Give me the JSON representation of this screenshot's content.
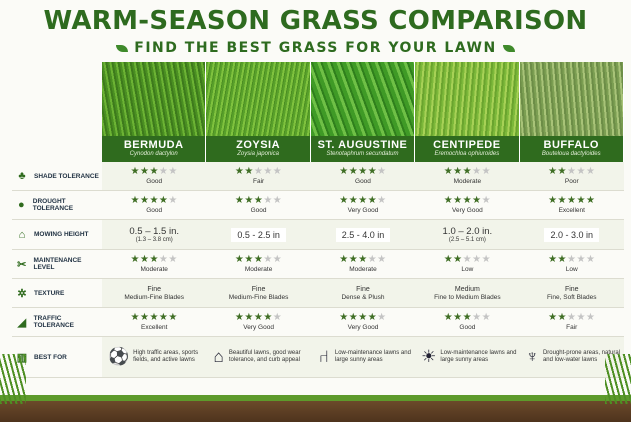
{
  "title": "WARM-SEASON GRASS COMPARISON",
  "subtitle": "FIND THE BEST GRASS FOR YOUR LAWN",
  "grasses": [
    {
      "name": "BERMUDA",
      "sci": "Cynodon dactylon"
    },
    {
      "name": "ZOYSIA",
      "sci": "Zoysia japonica"
    },
    {
      "name": "ST. AUGUSTINE",
      "sci": "Stenotaphrum secundatum"
    },
    {
      "name": "CENTIPEDE",
      "sci": "Eremochloa ophiuroides"
    },
    {
      "name": "BUFFALO",
      "sci": "Bouteloua dactyloides"
    }
  ],
  "rows": {
    "shade": {
      "label": "SHADE TOLERANCE",
      "icon": "tree-icon",
      "stars": [
        3,
        2,
        4,
        3,
        2
      ],
      "values": [
        "Good",
        "Fair",
        "Good",
        "Moderate",
        "Poor"
      ]
    },
    "drought": {
      "label": "DROUGHT TOLERANCE",
      "icon": "drop-icon",
      "stars": [
        4,
        3,
        4,
        4,
        5
      ],
      "values": [
        "Good",
        "Good",
        "Very Good",
        "Very Good",
        "Excellent"
      ]
    },
    "mowing": {
      "label": "MOWING HEIGHT",
      "icon": "mower-icon",
      "values": [
        "0.5 – 1.5 in.",
        "0.5 - 2.5 in",
        "2.5 - 4.0 in",
        "1.0 – 2.0 in.",
        "2.0 - 3.0 in"
      ],
      "cm": [
        "(1.3 – 3.8 cm)",
        "",
        "",
        "(2.5 – 5.1 cm)",
        ""
      ]
    },
    "maintenance": {
      "label": "MAINTENANCE LEVEL",
      "icon": "tools-icon",
      "stars": [
        3,
        3,
        3,
        2,
        2
      ],
      "values": [
        "Moderate",
        "Moderate",
        "Moderate",
        "Low",
        "Low"
      ]
    },
    "texture": {
      "label": "TEXTURE",
      "icon": "grass-icon",
      "values": [
        "Fine",
        "Fine",
        "Fine",
        "Medium",
        "Fine"
      ],
      "sub": [
        "Medium-Fine Blades",
        "Medium-Fine Blades",
        "Dense & Plush",
        "Fine to Medium Blades",
        "Fine, Soft Blades"
      ]
    },
    "traffic": {
      "label": "TRAFFIC TOLERANCE",
      "icon": "shoe-icon",
      "stars": [
        5,
        4,
        4,
        3,
        2
      ],
      "values": [
        "Excellent",
        "Very Good",
        "Very Good",
        "Good",
        "Fair"
      ]
    },
    "bestfor": {
      "label": "BEST FOR",
      "icon": "fence-icon",
      "values": [
        "High traffic areas, sports fields, and active lawns",
        "Beautiful lawns, good wear tolerance, and curb appeal",
        "Low-maintenance lawns and large sunny areas",
        "Low-maintenance lawns and large sunny areas",
        "Drought-prone areas, natural and low-water lawns"
      ],
      "icons": [
        "soccer-ball-icon",
        "house-icon",
        "lawn-chair-icon",
        "sun-icon",
        "cactus-icon"
      ]
    }
  }
}
